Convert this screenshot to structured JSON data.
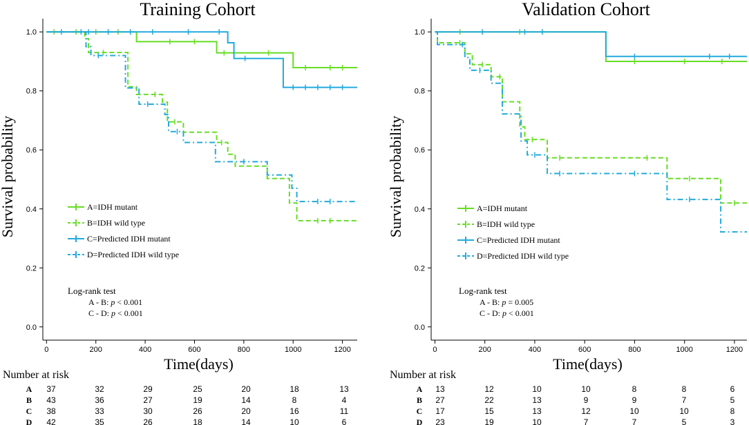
{
  "colors": {
    "green": "#66dd22",
    "blue": "#22aadd",
    "axis": "#000000"
  },
  "chart_data": [
    {
      "type": "line",
      "title": "Training Cohort",
      "xlabel": "Time(days)",
      "ylabel": "Survival probability",
      "xlim": [
        -15,
        1260
      ],
      "ylim": [
        -0.045,
        1.045
      ],
      "xticks": [
        0,
        200,
        400,
        600,
        800,
        1000,
        1200
      ],
      "yticks": [
        0.0,
        0.2,
        0.4,
        0.6,
        0.8,
        1.0
      ],
      "xtick_labels": [
        "0",
        "200",
        "400",
        "600",
        "800",
        "1000",
        "1200"
      ],
      "ytick_labels": [
        "0.0",
        "0.2",
        "0.4",
        "0.6",
        "0.8",
        "1.0"
      ],
      "legend": [
        "A=IDH mutant",
        "B=IDH wild type",
        "C=Predicted IDH mutant",
        "D=Predicted IDH wild type"
      ],
      "logrank": {
        "title": "Log-rank test",
        "lines": [
          {
            "pair": "A - B: ",
            "p": "p",
            "rest": " < 0.001"
          },
          {
            "pair": "C - D: ",
            "p": "p",
            "rest": " < 0.001"
          }
        ]
      },
      "risk_title": "Number at risk",
      "risk_times": [
        0,
        200,
        400,
        600,
        800,
        1000,
        1200
      ],
      "risk": [
        {
          "label": "A",
          "values": [
            "37",
            "32",
            "29",
            "25",
            "20",
            "18",
            "13"
          ]
        },
        {
          "label": "B",
          "values": [
            "43",
            "36",
            "27",
            "19",
            "14",
            "8",
            "4"
          ]
        },
        {
          "label": "C",
          "values": [
            "38",
            "33",
            "30",
            "26",
            "20",
            "16",
            "11"
          ]
        },
        {
          "label": "D",
          "values": [
            "42",
            "35",
            "26",
            "18",
            "14",
            "10",
            "6"
          ]
        }
      ],
      "series": [
        {
          "name": "A=IDH mutant",
          "color": "#66dd22",
          "dash": "solid",
          "steps": [
            [
              0,
              1.0
            ],
            [
              365,
              0.967
            ],
            [
              690,
              0.929
            ],
            [
              1000,
              0.879
            ],
            [
              1260,
              0.879
            ]
          ],
          "censor": [
            [
              30,
              1.0
            ],
            [
              120,
              1.0
            ],
            [
              200,
              1.0
            ],
            [
              290,
              1.0
            ],
            [
              500,
              0.967
            ],
            [
              600,
              0.967
            ],
            [
              720,
              0.929
            ],
            [
              900,
              0.929
            ],
            [
              1050,
              0.879
            ],
            [
              1150,
              0.879
            ],
            [
              1200,
              0.879
            ]
          ]
        },
        {
          "name": "B=IDH wild type",
          "color": "#66dd22",
          "dash": "dash",
          "steps": [
            [
              0,
              1.0
            ],
            [
              155,
              0.977
            ],
            [
              170,
              0.93
            ],
            [
              330,
              0.814
            ],
            [
              365,
              0.788
            ],
            [
              470,
              0.762
            ],
            [
              490,
              0.695
            ],
            [
              555,
              0.66
            ],
            [
              690,
              0.625
            ],
            [
              735,
              0.585
            ],
            [
              765,
              0.545
            ],
            [
              895,
              0.503
            ],
            [
              985,
              0.42
            ],
            [
              1015,
              0.36
            ],
            [
              1260,
              0.36
            ]
          ],
          "censor": [
            [
              230,
              0.93
            ],
            [
              440,
              0.788
            ],
            [
              520,
              0.695
            ],
            [
              710,
              0.625
            ],
            [
              1100,
              0.36
            ],
            [
              1150,
              0.36
            ]
          ]
        },
        {
          "name": "C=Predicted IDH mutant",
          "color": "#22aadd",
          "dash": "solid",
          "steps": [
            [
              0,
              1.0
            ],
            [
              735,
              0.963
            ],
            [
              760,
              0.91
            ],
            [
              960,
              0.812
            ],
            [
              1260,
              0.812
            ]
          ],
          "censor": [
            [
              60,
              1.0
            ],
            [
              140,
              1.0
            ],
            [
              170,
              1.0
            ],
            [
              250,
              1.0
            ],
            [
              340,
              1.0
            ],
            [
              430,
              1.0
            ],
            [
              575,
              1.0
            ],
            [
              700,
              1.0
            ],
            [
              805,
              0.91
            ],
            [
              1000,
              0.812
            ],
            [
              1050,
              0.812
            ],
            [
              1100,
              0.812
            ],
            [
              1150,
              0.812
            ],
            [
              1200,
              0.812
            ]
          ]
        },
        {
          "name": "D=Predicted IDH wild type",
          "color": "#22aadd",
          "dash": "dashdot",
          "steps": [
            [
              0,
              1.0
            ],
            [
              160,
              0.95
            ],
            [
              180,
              0.92
            ],
            [
              320,
              0.81
            ],
            [
              375,
              0.755
            ],
            [
              480,
              0.72
            ],
            [
              495,
              0.662
            ],
            [
              555,
              0.625
            ],
            [
              685,
              0.56
            ],
            [
              895,
              0.515
            ],
            [
              995,
              0.47
            ],
            [
              1015,
              0.425
            ],
            [
              1260,
              0.425
            ]
          ],
          "censor": [
            [
              210,
              0.92
            ],
            [
              410,
              0.755
            ],
            [
              530,
              0.662
            ],
            [
              800,
              0.56
            ],
            [
              1100,
              0.425
            ],
            [
              1150,
              0.425
            ]
          ]
        }
      ]
    },
    {
      "type": "line",
      "title": "Validation Cohort",
      "xlabel": "Time(days)",
      "ylabel": "Survival probability",
      "xlim": [
        -15,
        1250
      ],
      "ylim": [
        -0.045,
        1.045
      ],
      "xticks": [
        0,
        200,
        400,
        600,
        800,
        1000,
        1200
      ],
      "yticks": [
        0.0,
        0.2,
        0.4,
        0.6,
        0.8,
        1.0
      ],
      "xtick_labels": [
        "0",
        "200",
        "400",
        "600",
        "800",
        "1000",
        "1200"
      ],
      "ytick_labels": [
        "0.0",
        "0.2",
        "0.4",
        "0.6",
        "0.8",
        "1.0"
      ],
      "legend": [
        "A=IDH mutant",
        "B=IDH wild type",
        "C=Predicted IDH mutant",
        "D=Predicted IDH wild type"
      ],
      "logrank": {
        "title": "Log-rank test",
        "lines": [
          {
            "pair": "A - B: ",
            "p": "p",
            "rest": " = 0.005"
          },
          {
            "pair": "C - D: ",
            "p": "p",
            "rest": " < 0.001"
          }
        ]
      },
      "risk_title": "Number at risk",
      "risk_times": [
        0,
        200,
        400,
        600,
        800,
        1000,
        1200
      ],
      "risk": [
        {
          "label": "A",
          "values": [
            "13",
            "12",
            "10",
            "10",
            "8",
            "8",
            "6"
          ]
        },
        {
          "label": "B",
          "values": [
            "27",
            "22",
            "13",
            "9",
            "9",
            "7",
            "5"
          ]
        },
        {
          "label": "C",
          "values": [
            "17",
            "15",
            "13",
            "12",
            "10",
            "10",
            "8"
          ]
        },
        {
          "label": "D",
          "values": [
            "23",
            "19",
            "10",
            "7",
            "7",
            "5",
            "3"
          ]
        }
      ],
      "series": [
        {
          "name": "A=IDH mutant",
          "color": "#66dd22",
          "dash": "solid",
          "steps": [
            [
              0,
              1.0
            ],
            [
              685,
              0.9
            ],
            [
              1250,
              0.9
            ]
          ],
          "censor": [
            [
              100,
              1.0
            ],
            [
              340,
              1.0
            ],
            [
              800,
              0.9
            ],
            [
              1000,
              0.9
            ],
            [
              1150,
              0.9
            ]
          ]
        },
        {
          "name": "B=IDH wild type",
          "color": "#66dd22",
          "dash": "dash",
          "steps": [
            [
              0,
              1.0
            ],
            [
              10,
              0.963
            ],
            [
              120,
              0.926
            ],
            [
              150,
              0.889
            ],
            [
              225,
              0.848
            ],
            [
              270,
              0.763
            ],
            [
              340,
              0.678
            ],
            [
              360,
              0.635
            ],
            [
              450,
              0.573
            ],
            [
              930,
              0.503
            ],
            [
              1145,
              0.42
            ],
            [
              1250,
              0.42
            ]
          ],
          "censor": [
            [
              100,
              0.963
            ],
            [
              190,
              0.889
            ],
            [
              260,
              0.848
            ],
            [
              390,
              0.635
            ],
            [
              500,
              0.573
            ],
            [
              850,
              0.573
            ],
            [
              1020,
              0.503
            ],
            [
              1200,
              0.42
            ]
          ]
        },
        {
          "name": "C=Predicted IDH mutant",
          "color": "#22aadd",
          "dash": "solid",
          "steps": [
            [
              0,
              1.0
            ],
            [
              685,
              0.917
            ],
            [
              1250,
              0.917
            ]
          ],
          "censor": [
            [
              190,
              1.0
            ],
            [
              360,
              1.0
            ],
            [
              430,
              1.0
            ],
            [
              800,
              0.917
            ],
            [
              1100,
              0.917
            ],
            [
              1180,
              0.917
            ]
          ]
        },
        {
          "name": "D=Predicted IDH wild type",
          "color": "#22aadd",
          "dash": "dashdot",
          "steps": [
            [
              0,
              1.0
            ],
            [
              10,
              0.957
            ],
            [
              120,
              0.913
            ],
            [
              140,
              0.87
            ],
            [
              225,
              0.826
            ],
            [
              270,
              0.722
            ],
            [
              345,
              0.63
            ],
            [
              370,
              0.583
            ],
            [
              450,
              0.52
            ],
            [
              930,
              0.432
            ],
            [
              1145,
              0.322
            ],
            [
              1250,
              0.322
            ]
          ],
          "censor": [
            [
              110,
              0.957
            ],
            [
              180,
              0.87
            ],
            [
              400,
              0.583
            ],
            [
              500,
              0.52
            ],
            [
              800,
              0.52
            ],
            [
              1020,
              0.432
            ]
          ]
        }
      ]
    }
  ]
}
